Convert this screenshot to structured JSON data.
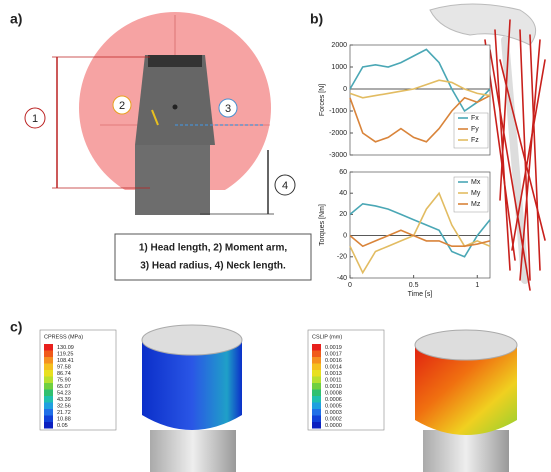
{
  "chart_data": [
    {
      "type": "line",
      "ylabel": "Forces [N]",
      "x": [
        0,
        0.1,
        0.2,
        0.3,
        0.4,
        0.5,
        0.6,
        0.7,
        0.8,
        0.9,
        1.0,
        1.1
      ],
      "series": [
        {
          "name": "Fx",
          "color": "#4aa7b5",
          "values": [
            0,
            1000,
            1100,
            1000,
            1200,
            1500,
            1800,
            1200,
            0,
            -1000,
            -600,
            0
          ]
        },
        {
          "name": "Fy",
          "color": "#d9843a",
          "values": [
            -400,
            -2000,
            -2400,
            -2200,
            -1800,
            -2200,
            -2400,
            -1800,
            -1000,
            -400,
            -600,
            -300
          ]
        },
        {
          "name": "Fz",
          "color": "#e2bc62",
          "values": [
            -200,
            -400,
            -300,
            -200,
            -100,
            0,
            200,
            400,
            300,
            0,
            -200,
            -300
          ]
        }
      ],
      "xlim": [
        0,
        1.1
      ],
      "ylim": [
        -3000,
        2000
      ],
      "yticks": [
        -3000,
        -2000,
        -1000,
        0,
        1000,
        2000
      ]
    },
    {
      "type": "line",
      "ylabel": "Torques [Nm]",
      "xlabel": "Time [s]",
      "x": [
        0,
        0.1,
        0.2,
        0.3,
        0.4,
        0.5,
        0.6,
        0.7,
        0.8,
        0.9,
        1.0,
        1.1
      ],
      "series": [
        {
          "name": "Mx",
          "color": "#4aa7b5",
          "values": [
            20,
            30,
            28,
            25,
            20,
            15,
            10,
            5,
            -15,
            -20,
            0,
            15
          ]
        },
        {
          "name": "My",
          "color": "#e2bc62",
          "values": [
            -10,
            -35,
            -15,
            -10,
            -5,
            0,
            25,
            40,
            10,
            -10,
            -5,
            -10
          ]
        },
        {
          "name": "Mz",
          "color": "#d9843a",
          "values": [
            0,
            -10,
            -5,
            0,
            5,
            0,
            -5,
            -5,
            -10,
            -10,
            -8,
            -5
          ]
        }
      ],
      "xlim": [
        0,
        1.1
      ],
      "xticks": [
        0,
        0.5,
        1
      ],
      "ylim": [
        -40,
        60
      ],
      "yticks": [
        -40,
        -20,
        0,
        20,
        40,
        60
      ]
    }
  ],
  "figure": {
    "panels": [
      "a)",
      "b)",
      "c)"
    ],
    "diagram_labels": [
      "1",
      "2",
      "3",
      "4"
    ],
    "caption": [
      "1) Head length, 2) Moment arm,",
      "3) Head radius, 4) Neck length."
    ],
    "contours": [
      {
        "title": "CPRESS (MPa)",
        "labels": [
          "130.09",
          "119.25",
          "108.41",
          "97.58",
          "86.74",
          "75.90",
          "65.07",
          "54.23",
          "43.39",
          "32.56",
          "21.72",
          "10.88",
          "0.05"
        ]
      },
      {
        "title": "CSLIP (mm)",
        "labels": [
          "0.0019",
          "0.0017",
          "0.0016",
          "0.0014",
          "0.0013",
          "0.0011",
          "0.0010",
          "0.0008",
          "0.0006",
          "0.0005",
          "0.0003",
          "0.0002",
          "0.0000"
        ]
      }
    ]
  }
}
